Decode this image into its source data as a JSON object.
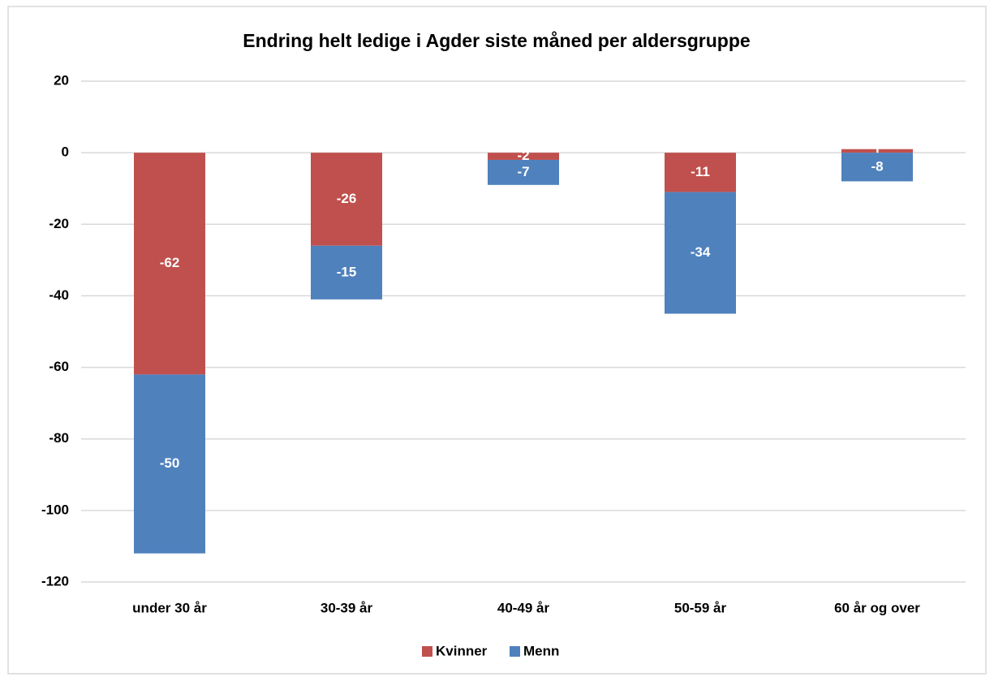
{
  "chart_data": {
    "type": "stacked_bar",
    "title": "Endring helt ledige i Agder siste måned per aldersgruppe",
    "categories": [
      "under 30 år",
      "30-39 år",
      "40-49 år",
      "50-59 år",
      "60 år og over"
    ],
    "series": [
      {
        "name": "Kvinner",
        "color": "#c0504d",
        "values": [
          -62,
          -26,
          -2,
          -11,
          1
        ]
      },
      {
        "name": "Menn",
        "color": "#4f81bd",
        "values": [
          -50,
          -15,
          -7,
          -34,
          -8
        ]
      }
    ],
    "ylim": [
      -120,
      20
    ],
    "yticks": [
      20,
      0,
      -20,
      -40,
      -60,
      -80,
      -100,
      -120
    ],
    "grid": true,
    "legend": "bottom"
  }
}
